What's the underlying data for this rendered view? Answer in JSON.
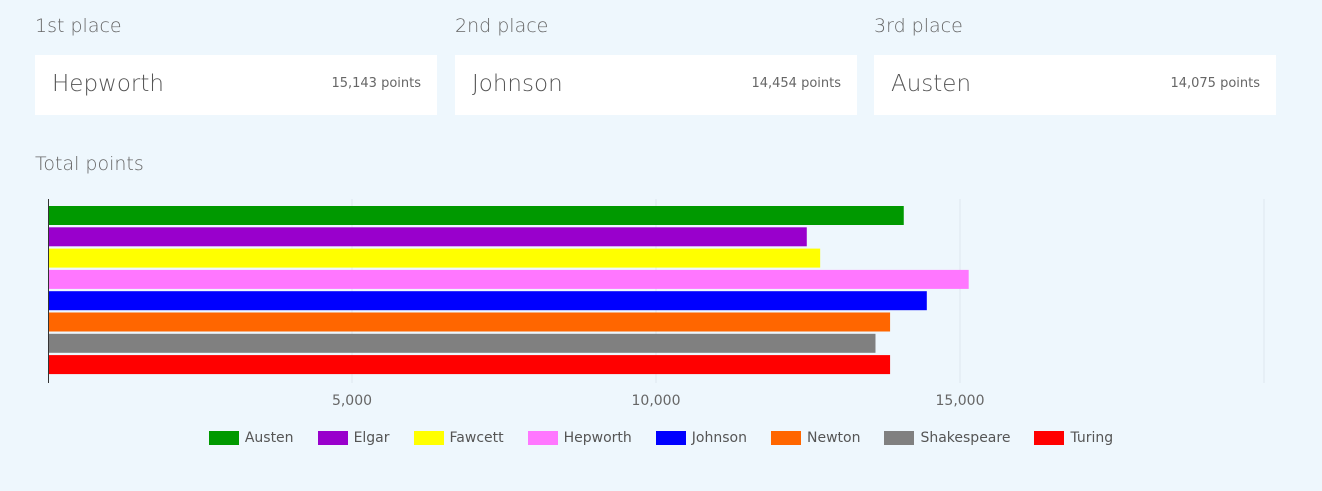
{
  "podium": [
    {
      "label": "1st place",
      "name": "Hepworth",
      "points": "15,143 points"
    },
    {
      "label": "2nd place",
      "name": "Johnson",
      "points": "14,454 points"
    },
    {
      "label": "3rd place",
      "name": "Austen",
      "points": "14,075 points"
    }
  ],
  "section_title": "Total points",
  "chart_data": {
    "type": "bar",
    "orientation": "horizontal",
    "title": "Total points",
    "xlabel": "",
    "ylabel": "",
    "xlim": [
      0,
      20000
    ],
    "ticks": [
      5000,
      10000,
      15000
    ],
    "tick_labels": [
      "5,000",
      "10,000",
      "15,000"
    ],
    "grid": true,
    "legend_position": "bottom",
    "series": [
      {
        "name": "Austen",
        "value": 14075,
        "color": "#009900"
      },
      {
        "name": "Elgar",
        "value": 12480,
        "color": "#9900cc"
      },
      {
        "name": "Fawcett",
        "value": 12700,
        "color": "#ffff00"
      },
      {
        "name": "Hepworth",
        "value": 15143,
        "color": "#ff77ff"
      },
      {
        "name": "Johnson",
        "value": 14454,
        "color": "#0000ff"
      },
      {
        "name": "Newton",
        "value": 13850,
        "color": "#ff6600"
      },
      {
        "name": "Shakespeare",
        "value": 13610,
        "color": "#808080"
      },
      {
        "name": "Turing",
        "value": 13850,
        "color": "#ff0000"
      }
    ]
  }
}
